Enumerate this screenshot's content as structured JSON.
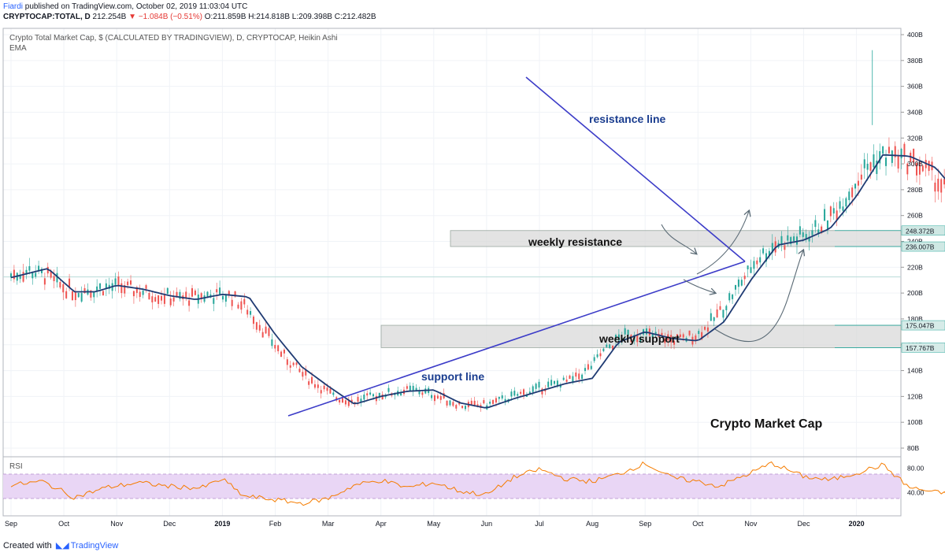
{
  "header": {
    "author": "Fiardi",
    "published": "published on TradingView.com, October 02, 2019 11:03:04 UTC",
    "symbol": "CRYPTOCAP:TOTAL, D",
    "last": "212.254B",
    "change": "−1.084B (−0.51%)",
    "ohlc": "O:211.859B H:214.818B L:209.398B C:212.482B"
  },
  "legend": {
    "line1": "Crypto Total Market Cap, $ (CALCULATED BY TRADINGVIEW), D, CRYPTOCAP, Heikin Ashi",
    "line2": "EMA"
  },
  "rsi_label": "RSI",
  "footer": {
    "created": "Created with",
    "brand": "TradingView"
  },
  "colors": {
    "up": "#26a69a",
    "down": "#ef5350",
    "ema": "#1f3b73",
    "trend": "#3c3cc8",
    "annotation": "#1a3d8f",
    "rsi": "#f57c00",
    "rsi_band": "#e9d6f5"
  },
  "chart_data": {
    "type": "candlestick",
    "title": "Crypto Market Cap",
    "price_axis": {
      "unit": "B",
      "ticks": [
        "400B",
        "380B",
        "360B",
        "340B",
        "320B",
        "300B",
        "280B",
        "260B",
        "240B",
        "220B",
        "200B",
        "180B",
        "160B",
        "140B",
        "120B",
        "100B",
        "80B"
      ],
      "ylim": [
        80,
        400
      ]
    },
    "time_axis": {
      "ticks": [
        "Sep",
        "Oct",
        "Nov",
        "Dec",
        "2019",
        "Feb",
        "Mar",
        "Apr",
        "May",
        "Jun",
        "Jul",
        "Aug",
        "Sep",
        "Oct",
        "Nov",
        "Dec",
        "2020"
      ]
    },
    "price_labels": [
      {
        "label": "248.372B",
        "value": 248.372
      },
      {
        "label": "236.007B",
        "value": 236.007
      },
      {
        "label": "175.047B",
        "value": 175.047
      },
      {
        "label": "157.767B",
        "value": 157.767
      }
    ],
    "zones": [
      {
        "label": "weekly resistance",
        "top": 248.372,
        "bottom": 236.007
      },
      {
        "label": "weekly support",
        "top": 175.047,
        "bottom": 157.767
      }
    ],
    "annotations": [
      "resistance line",
      "support line"
    ],
    "series": [
      {
        "name": "EMA",
        "anchors": [
          {
            "t": 0,
            "v": 212
          },
          {
            "t": 0.7,
            "v": 219
          },
          {
            "t": 1.2,
            "v": 201
          },
          {
            "t": 1.6,
            "v": 201
          },
          {
            "t": 2,
            "v": 206
          },
          {
            "t": 2.5,
            "v": 203
          },
          {
            "t": 3,
            "v": 198
          },
          {
            "t": 3.5,
            "v": 195
          },
          {
            "t": 4,
            "v": 199
          },
          {
            "t": 4.5,
            "v": 197
          },
          {
            "t": 5,
            "v": 168
          },
          {
            "t": 5.5,
            "v": 143
          },
          {
            "t": 6,
            "v": 128
          },
          {
            "t": 6.5,
            "v": 114
          },
          {
            "t": 7,
            "v": 120
          },
          {
            "t": 7.5,
            "v": 124
          },
          {
            "t": 8,
            "v": 125
          },
          {
            "t": 8.5,
            "v": 115
          },
          {
            "t": 9,
            "v": 111
          },
          {
            "t": 9.5,
            "v": 118
          },
          {
            "t": 10,
            "v": 124
          },
          {
            "t": 10.5,
            "v": 130
          },
          {
            "t": 11,
            "v": 134
          },
          {
            "t": 11.5,
            "v": 162
          },
          {
            "t": 12,
            "v": 170
          },
          {
            "t": 12.5,
            "v": 165
          },
          {
            "t": 13,
            "v": 163
          },
          {
            "t": 13.5,
            "v": 178
          },
          {
            "t": 14,
            "v": 210
          },
          {
            "t": 14.5,
            "v": 237
          },
          {
            "t": 15,
            "v": 241
          },
          {
            "t": 15.5,
            "v": 250
          },
          {
            "t": 16,
            "v": 275
          },
          {
            "t": 16.5,
            "v": 307
          },
          {
            "t": 17,
            "v": 306
          },
          {
            "t": 17.5,
            "v": 297
          },
          {
            "t": 18,
            "v": 273
          },
          {
            "t": 18.5,
            "v": 267
          },
          {
            "t": 19,
            "v": 285
          },
          {
            "t": 19.5,
            "v": 271
          },
          {
            "t": 20,
            "v": 258
          },
          {
            "t": 20.5,
            "v": 259
          },
          {
            "t": 21,
            "v": 260
          },
          {
            "t": 21.4,
            "v": 259
          },
          {
            "t": 21.7,
            "v": 250
          },
          {
            "t": 22,
            "v": 235
          },
          {
            "t": 22.3,
            "v": 213
          },
          {
            "t": 22.6,
            "v": 210
          }
        ]
      },
      {
        "name": "RSI",
        "levels": [
          70,
          30
        ],
        "anchors": [
          {
            "t": 0,
            "v": 52
          },
          {
            "t": 0.6,
            "v": 58
          },
          {
            "t": 1.2,
            "v": 32
          },
          {
            "t": 1.8,
            "v": 48
          },
          {
            "t": 2.4,
            "v": 56
          },
          {
            "t": 3,
            "v": 50
          },
          {
            "t": 3.6,
            "v": 47
          },
          {
            "t": 4,
            "v": 62
          },
          {
            "t": 4.4,
            "v": 34
          },
          {
            "t": 5,
            "v": 28
          },
          {
            "t": 5.5,
            "v": 22
          },
          {
            "t": 6,
            "v": 30
          },
          {
            "t": 6.5,
            "v": 52
          },
          {
            "t": 7,
            "v": 60
          },
          {
            "t": 7.5,
            "v": 48
          },
          {
            "t": 8,
            "v": 56
          },
          {
            "t": 8.5,
            "v": 42
          },
          {
            "t": 9,
            "v": 36
          },
          {
            "t": 9.5,
            "v": 64
          },
          {
            "t": 10,
            "v": 78
          },
          {
            "t": 10.5,
            "v": 62
          },
          {
            "t": 11,
            "v": 58
          },
          {
            "t": 11.5,
            "v": 70
          },
          {
            "t": 12,
            "v": 88
          },
          {
            "t": 12.5,
            "v": 64
          },
          {
            "t": 13,
            "v": 58
          },
          {
            "t": 13.4,
            "v": 50
          },
          {
            "t": 14,
            "v": 72
          },
          {
            "t": 14.4,
            "v": 88
          },
          {
            "t": 15,
            "v": 66
          },
          {
            "t": 15.5,
            "v": 60
          },
          {
            "t": 16,
            "v": 72
          },
          {
            "t": 16.5,
            "v": 85
          },
          {
            "t": 17,
            "v": 48
          },
          {
            "t": 17.5,
            "v": 40
          },
          {
            "t": 18,
            "v": 36
          },
          {
            "t": 18.5,
            "v": 44
          },
          {
            "t": 19,
            "v": 62
          },
          {
            "t": 19.5,
            "v": 45
          },
          {
            "t": 20,
            "v": 38
          },
          {
            "t": 20.5,
            "v": 48
          },
          {
            "t": 21,
            "v": 56
          },
          {
            "t": 21.5,
            "v": 52
          },
          {
            "t": 22,
            "v": 44
          },
          {
            "t": 22.2,
            "v": 18
          },
          {
            "t": 22.6,
            "v": 26
          }
        ]
      }
    ],
    "grid": true
  }
}
